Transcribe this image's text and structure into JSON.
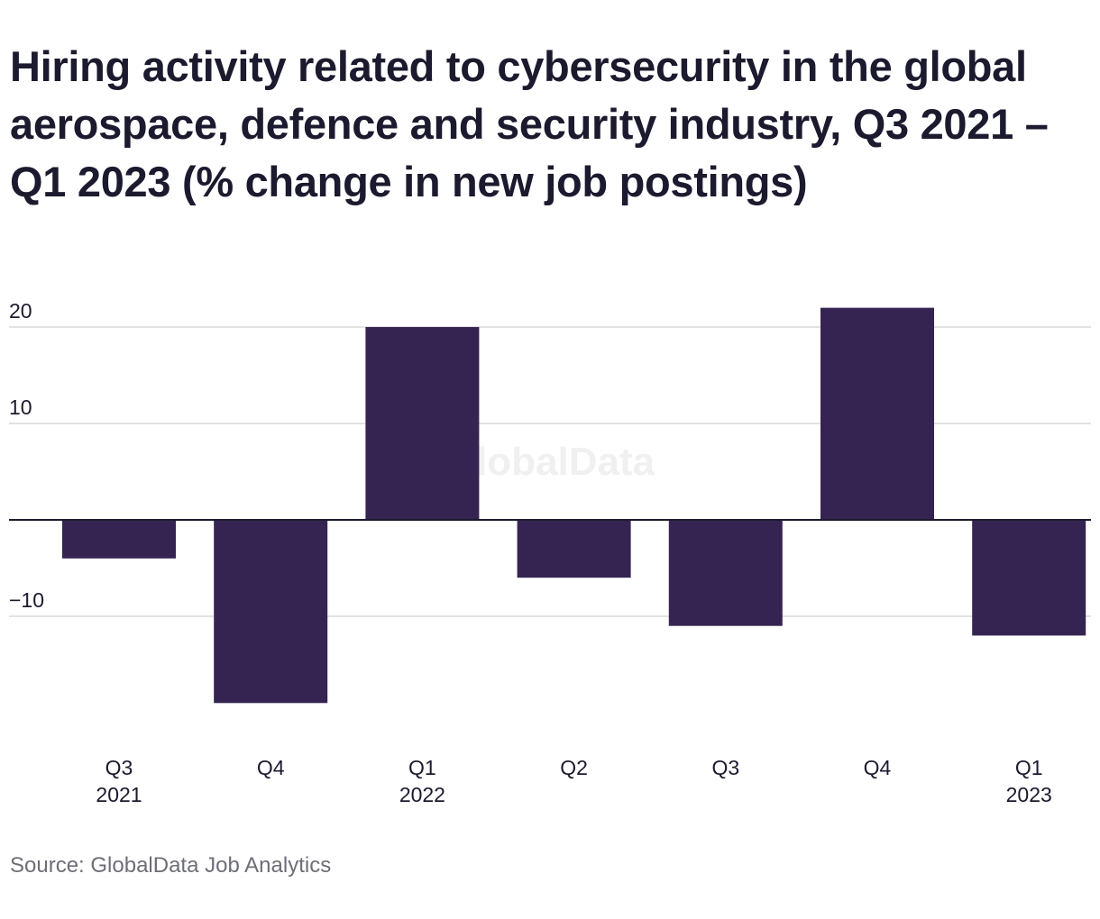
{
  "title": "Hiring activity related to cybersecurity in the global aerospace, defence and security industry, Q3 2021 – Q1 2023 (% change in new job postings)",
  "source": "Source: GlobalData Job Analytics",
  "watermark": "GlobalData",
  "colors": {
    "bar": "#352451",
    "grid": "#d9d9d9",
    "zero_line": "#1b1a2e",
    "text": "#1b1a2e",
    "source_text": "#6e6e78"
  },
  "chart_data": {
    "type": "bar",
    "title": "Hiring activity related to cybersecurity in the global aerospace, defence and security industry, Q3 2021 – Q1 2023 (% change in new job postings)",
    "categories": [
      [
        "Q3",
        "2021"
      ],
      [
        "Q4"
      ],
      [
        "Q1",
        "2022"
      ],
      [
        "Q2"
      ],
      [
        "Q3"
      ],
      [
        "Q4"
      ],
      [
        "Q1",
        "2023"
      ]
    ],
    "values": [
      -4,
      -19,
      20,
      -6,
      -11,
      22,
      -12
    ],
    "yticks": [
      {
        "value": 20,
        "label": "20"
      },
      {
        "value": 10,
        "label": "10"
      },
      {
        "value": -10,
        "label": "−10"
      }
    ],
    "ylim": [
      -22,
      24
    ],
    "grid": true,
    "legend": "none",
    "xlabel": "",
    "ylabel": ""
  }
}
